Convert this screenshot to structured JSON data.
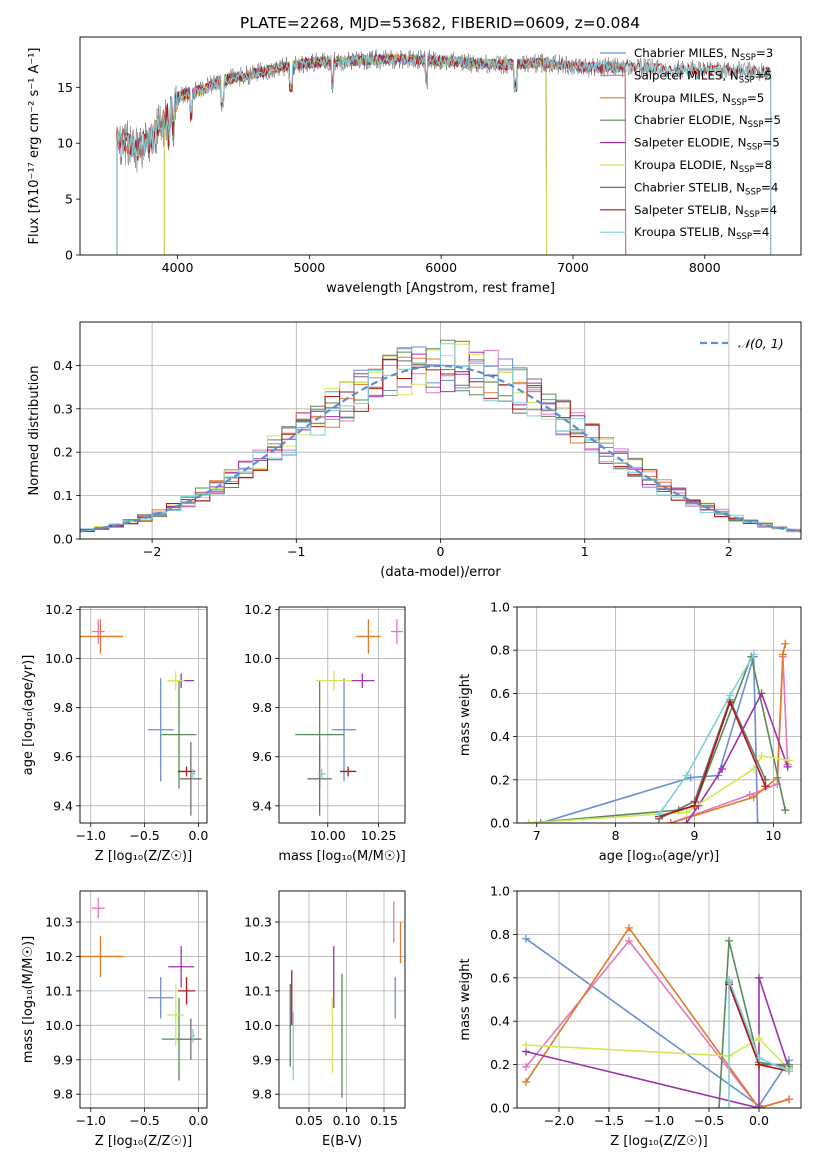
{
  "figure_title": "PLATE=2268, MJD=53682, FIBERID=0609, z=0.084",
  "colors": {
    "Chabrier MILES": "#6a8fd6",
    "Salpeter MILES": "#e377c2",
    "Kroupa MILES": "#e07b2a",
    "Chabrier ELODIE": "#5a8a5a",
    "Salpeter ELODIE": "#a030b0",
    "Kroupa ELODIE": "#d4e85a",
    "Chabrier STELIB": "#707070",
    "Salpeter STELIB": "#b01818",
    "Kroupa STELIB": "#7fd0d8"
  },
  "chart_data": [
    {
      "id": "spectrum",
      "type": "line",
      "title": "PLATE=2268, MJD=53682, FIBERID=0609, z=0.084",
      "xlabel": "wavelength [Angstrom, rest frame]",
      "ylabel": "Flux [fλ10⁻¹⁷ erg cm⁻² s⁻¹ A⁻¹]",
      "xlim": [
        3260,
        8730
      ],
      "ylim": [
        0,
        19.5
      ],
      "xticks": [
        4000,
        5000,
        6000,
        7000,
        8000
      ],
      "yticks": [
        0,
        5,
        10,
        15
      ],
      "legend_position": "top-right",
      "legend": [
        "Chabrier MILES, N_SSP=3",
        "Salpeter MILES, N_SSP=5",
        "Kroupa MILES, N_SSP=5",
        "Chabrier ELODIE, N_SSP=5",
        "Salpeter ELODIE, N_SSP=5",
        "Kroupa ELODIE, N_SSP=8",
        "Chabrier STELIB, N_SSP=4",
        "Salpeter STELIB, N_SSP=4",
        "Kroupa STELIB, N_SSP=4"
      ],
      "continuum": {
        "x": [
          3500,
          3600,
          3700,
          3800,
          3900,
          4000,
          4100,
          4200,
          4300,
          4400,
          4500,
          4700,
          5000,
          5300,
          5600,
          5900,
          6200,
          6500,
          6800,
          7100,
          7400,
          7800,
          8200,
          8500
        ],
        "y": [
          10.5,
          10,
          9.5,
          10.5,
          12,
          14.2,
          14.5,
          14.8,
          15.5,
          15.8,
          16,
          16.6,
          17.2,
          17.4,
          17.5,
          17.5,
          17.2,
          17,
          17.2,
          16.8,
          16.8,
          16.6,
          16.5,
          16.3
        ]
      },
      "model_ranges": {
        "Chabrier MILES": [
          3540,
          7400
        ],
        "Salpeter MILES": [
          3540,
          7400
        ],
        "Kroupa MILES": [
          3540,
          7400
        ],
        "Chabrier ELODIE": [
          3900,
          6800
        ],
        "Salpeter ELODIE": [
          3900,
          6800
        ],
        "Kroupa ELODIE": [
          3900,
          6800
        ],
        "Chabrier STELIB": [
          3540,
          8500
        ],
        "Salpeter STELIB": [
          3540,
          8500
        ],
        "Kroupa STELIB": [
          3540,
          8500
        ]
      }
    },
    {
      "id": "residuals",
      "type": "line",
      "xlabel": "(data-model)/error",
      "ylabel": "Normed distribution",
      "xlim": [
        -2.5,
        2.5
      ],
      "ylim": [
        0,
        0.5
      ],
      "xticks": [
        -2,
        -1,
        0,
        1,
        2
      ],
      "yticks": [
        0.0,
        0.1,
        0.2,
        0.3,
        0.4
      ],
      "grid": true,
      "legend_position": "top-right",
      "legend": [
        "𝒩(0, 1)"
      ],
      "normal_curve_color": "#5b8ed6",
      "bin_width": 0.1
    },
    {
      "id": "age-vs-Z",
      "type": "scatter",
      "xlabel": "Z [log₁₀(Z/Z☉)]",
      "ylabel": "age  [log₁₀(age/yr)]",
      "xlim": [
        -1.1,
        0.08
      ],
      "ylim": [
        9.33,
        10.21
      ],
      "xticks": [
        -1.0,
        -0.5,
        0.0
      ],
      "yticks": [
        9.4,
        9.6,
        9.8,
        10.0,
        10.2
      ],
      "grid": true,
      "points": [
        {
          "model": "Chabrier MILES",
          "x": -0.35,
          "y": 9.71,
          "xerr": 0.12,
          "yerr": 0.21
        },
        {
          "model": "Salpeter MILES",
          "x": -0.93,
          "y": 10.11,
          "xerr": 0.06,
          "yerr": 0.05
        },
        {
          "model": "Kroupa MILES",
          "x": -0.91,
          "y": 10.09,
          "xerr": 0.21,
          "yerr": 0.07
        },
        {
          "model": "Chabrier ELODIE",
          "x": -0.18,
          "y": 9.69,
          "xerr": 0.16,
          "yerr": 0.22
        },
        {
          "model": "Salpeter ELODIE",
          "x": -0.16,
          "y": 9.91,
          "xerr": 0.12,
          "yerr": 0.03
        },
        {
          "model": "Kroupa ELODIE",
          "x": -0.21,
          "y": 9.91,
          "xerr": 0.08,
          "yerr": 0.04
        },
        {
          "model": "Chabrier STELIB",
          "x": -0.07,
          "y": 9.51,
          "xerr": 0.1,
          "yerr": 0.15
        },
        {
          "model": "Salpeter STELIB",
          "x": -0.11,
          "y": 9.54,
          "xerr": 0.08,
          "yerr": 0.02
        },
        {
          "model": "Kroupa STELIB",
          "x": -0.05,
          "y": 9.53,
          "xerr": 0.02,
          "yerr": 0.02
        }
      ]
    },
    {
      "id": "age-vs-mass",
      "type": "scatter",
      "xlabel": "mass [log₁₀(M/M☉)]",
      "ylabel": "",
      "xlim": [
        9.76,
        10.38
      ],
      "ylim": [
        9.33,
        10.21
      ],
      "xticks": [
        10.0,
        10.25
      ],
      "yticks": [
        9.4,
        9.6,
        9.8,
        10.0,
        10.2
      ],
      "grid": true,
      "points": [
        {
          "model": "Chabrier MILES",
          "x": 10.08,
          "y": 9.71,
          "xerr": 0.06,
          "yerr": 0.21
        },
        {
          "model": "Salpeter MILES",
          "x": 10.34,
          "y": 10.11,
          "xerr": 0.03,
          "yerr": 0.05
        },
        {
          "model": "Kroupa MILES",
          "x": 10.2,
          "y": 10.09,
          "xerr": 0.06,
          "yerr": 0.07
        },
        {
          "model": "Chabrier ELODIE",
          "x": 9.96,
          "y": 9.69,
          "xerr": 0.12,
          "yerr": 0.22
        },
        {
          "model": "Salpeter ELODIE",
          "x": 10.17,
          "y": 9.91,
          "xerr": 0.06,
          "yerr": 0.03
        },
        {
          "model": "Kroupa ELODIE",
          "x": 10.03,
          "y": 9.91,
          "xerr": 0.09,
          "yerr": 0.04
        },
        {
          "model": "Chabrier STELIB",
          "x": 9.96,
          "y": 9.51,
          "xerr": 0.06,
          "yerr": 0.15
        },
        {
          "model": "Salpeter STELIB",
          "x": 10.1,
          "y": 9.54,
          "xerr": 0.04,
          "yerr": 0.02
        },
        {
          "model": "Kroupa STELIB",
          "x": 9.97,
          "y": 9.53,
          "xerr": 0.02,
          "yerr": 0.02
        }
      ]
    },
    {
      "id": "weight-vs-age",
      "type": "line",
      "xlabel": "age  [log₁₀(age/yr)]",
      "ylabel": "mass weight",
      "xlim": [
        6.75,
        10.35
      ],
      "ylim": [
        0,
        1
      ],
      "xticks": [
        7,
        8,
        9,
        10
      ],
      "yticks": [
        0.0,
        0.2,
        0.4,
        0.6,
        0.8,
        1.0
      ],
      "grid": true,
      "series": [
        {
          "model": "Chabrier MILES",
          "x": [
            7.05,
            8.95,
            9.3,
            9.75,
            9.8
          ],
          "y": [
            0.0,
            0.21,
            0.22,
            0.77,
            0.0
          ]
        },
        {
          "model": "Salpeter MILES",
          "x": [
            8.7,
            9.7,
            10.05,
            10.12,
            10.18
          ],
          "y": [
            0.0,
            0.13,
            0.18,
            0.77,
            0.27
          ]
        },
        {
          "model": "Kroupa MILES",
          "x": [
            8.7,
            9.75,
            10.05,
            10.12,
            10.15
          ],
          "y": [
            0.0,
            0.12,
            0.21,
            0.78,
            0.83
          ]
        },
        {
          "model": "Chabrier ELODIE",
          "x": [
            6.9,
            8.8,
            9.0,
            9.72,
            10.15
          ],
          "y": [
            0.0,
            0.06,
            0.08,
            0.77,
            0.06
          ]
        },
        {
          "model": "Salpeter ELODIE",
          "x": [
            8.9,
            9.05,
            9.35,
            9.85,
            10.18
          ],
          "y": [
            0.0,
            0.08,
            0.25,
            0.6,
            0.26
          ]
        },
        {
          "model": "Kroupa ELODIE",
          "x": [
            6.9,
            8.9,
            9.75,
            9.85,
            10.2
          ],
          "y": [
            0.0,
            0.05,
            0.25,
            0.31,
            0.29
          ]
        },
        {
          "model": "Chabrier STELIB",
          "x": [
            8.55,
            9.0,
            9.45,
            9.9
          ],
          "y": [
            0.02,
            0.1,
            0.57,
            0.2
          ]
        },
        {
          "model": "Salpeter STELIB",
          "x": [
            8.55,
            9.0,
            9.45,
            9.9
          ],
          "y": [
            0.03,
            0.08,
            0.56,
            0.17
          ]
        },
        {
          "model": "Kroupa STELIB",
          "x": [
            8.55,
            8.9,
            9.45,
            9.75
          ],
          "y": [
            0.04,
            0.22,
            0.59,
            0.78
          ]
        }
      ]
    },
    {
      "id": "mass-vs-Z",
      "type": "scatter",
      "xlabel": "Z [log₁₀(Z/Z☉)]",
      "ylabel": "mass [log₁₀(M/M☉)]",
      "xlim": [
        -1.1,
        0.08
      ],
      "ylim": [
        9.76,
        10.39
      ],
      "xticks": [
        -1.0,
        -0.5,
        0.0
      ],
      "yticks": [
        9.8,
        9.9,
        10.0,
        10.1,
        10.2,
        10.3
      ],
      "grid": true,
      "points": [
        {
          "model": "Chabrier MILES",
          "x": -0.35,
          "y": 10.08,
          "xerr": 0.12,
          "yerr": 0.06
        },
        {
          "model": "Salpeter MILES",
          "x": -0.93,
          "y": 10.34,
          "xerr": 0.06,
          "yerr": 0.03
        },
        {
          "model": "Kroupa MILES",
          "x": -0.91,
          "y": 10.2,
          "xerr": 0.21,
          "yerr": 0.06
        },
        {
          "model": "Chabrier ELODIE",
          "x": -0.18,
          "y": 9.96,
          "xerr": 0.16,
          "yerr": 0.12
        },
        {
          "model": "Salpeter ELODIE",
          "x": -0.16,
          "y": 10.17,
          "xerr": 0.12,
          "yerr": 0.06
        },
        {
          "model": "Kroupa ELODIE",
          "x": -0.21,
          "y": 10.03,
          "xerr": 0.08,
          "yerr": 0.09
        },
        {
          "model": "Chabrier STELIB",
          "x": -0.07,
          "y": 9.96,
          "xerr": 0.1,
          "yerr": 0.06
        },
        {
          "model": "Salpeter STELIB",
          "x": -0.11,
          "y": 10.1,
          "xerr": 0.08,
          "yerr": 0.04
        },
        {
          "model": "Kroupa STELIB",
          "x": -0.05,
          "y": 9.97,
          "xerr": 0.02,
          "yerr": 0.02
        }
      ]
    },
    {
      "id": "mass-vs-EBV",
      "type": "scatter",
      "xlabel": "E(B-V)",
      "ylabel": "",
      "xlim": [
        0.01,
        0.178
      ],
      "ylim": [
        9.76,
        10.39
      ],
      "xticks": [
        0.05,
        0.1,
        0.15
      ],
      "yticks": [
        9.8,
        9.9,
        10.0,
        10.1,
        10.2,
        10.3
      ],
      "grid": true,
      "points": [
        {
          "model": "Chabrier MILES",
          "x": 0.165,
          "y": 10.08,
          "xerr": 0,
          "yerr": 0.06
        },
        {
          "model": "Salpeter MILES",
          "x": 0.163,
          "y": 10.3,
          "xerr": 0,
          "yerr": 0.06
        },
        {
          "model": "Kroupa MILES",
          "x": 0.172,
          "y": 10.24,
          "xerr": 0,
          "yerr": 0.06
        },
        {
          "model": "Chabrier ELODIE",
          "x": 0.094,
          "y": 9.97,
          "xerr": 0,
          "yerr": 0.18
        },
        {
          "model": "Salpeter ELODIE",
          "x": 0.083,
          "y": 10.14,
          "xerr": 0,
          "yerr": 0.09
        },
        {
          "model": "Kroupa ELODIE",
          "x": 0.081,
          "y": 9.97,
          "xerr": 0,
          "yerr": 0.11
        },
        {
          "model": "Chabrier STELIB",
          "x": 0.025,
          "y": 10.0,
          "xerr": 0,
          "yerr": 0.12
        },
        {
          "model": "Salpeter STELIB",
          "x": 0.027,
          "y": 10.08,
          "xerr": 0,
          "yerr": 0.08
        },
        {
          "model": "Kroupa STELIB",
          "x": 0.029,
          "y": 9.94,
          "xerr": 0,
          "yerr": 0.1
        }
      ]
    },
    {
      "id": "weight-vs-Z",
      "type": "line",
      "xlabel": "Z [log₁₀(Z/Z☉)]",
      "ylabel": "mass weight",
      "xlim": [
        -2.42,
        0.42
      ],
      "ylim": [
        0,
        1
      ],
      "xticks": [
        -2.0,
        -1.5,
        -1.0,
        -0.5,
        0.0
      ],
      "yticks": [
        0.0,
        0.2,
        0.4,
        0.6,
        0.8,
        1.0
      ],
      "grid": true,
      "series": [
        {
          "model": "Chabrier MILES",
          "x": [
            -2.33,
            0.0,
            0.3
          ],
          "y": [
            0.78,
            0.01,
            0.22
          ]
        },
        {
          "model": "Salpeter MILES",
          "x": [
            -2.33,
            -1.3,
            0.0,
            0.3
          ],
          "y": [
            0.19,
            0.77,
            0.0,
            0.04
          ]
        },
        {
          "model": "Kroupa MILES",
          "x": [
            -2.33,
            -1.3,
            0.0,
            0.3
          ],
          "y": [
            0.12,
            0.83,
            0.0,
            0.04
          ]
        },
        {
          "model": "Chabrier ELODIE",
          "x": [
            -0.4,
            -0.3,
            0.0,
            0.3
          ],
          "y": [
            0.0,
            0.77,
            0.21,
            0.19
          ]
        },
        {
          "model": "Salpeter ELODIE",
          "x": [
            -2.33,
            0.0,
            0.0,
            0.3
          ],
          "y": [
            0.26,
            0.0,
            0.6,
            0.18
          ]
        },
        {
          "model": "Kroupa ELODIE",
          "x": [
            -2.33,
            -0.3,
            0.0,
            0.3
          ],
          "y": [
            0.29,
            0.24,
            0.32,
            0.18
          ]
        },
        {
          "model": "Chabrier STELIB",
          "x": [
            -0.3,
            0.0,
            0.3
          ],
          "y": [
            0.58,
            0.2,
            0.2
          ]
        },
        {
          "model": "Salpeter STELIB",
          "x": [
            -0.3,
            0.0,
            0.3
          ],
          "y": [
            0.57,
            0.2,
            0.17
          ]
        },
        {
          "model": "Kroupa STELIB",
          "x": [
            -0.3,
            -0.3,
            0.0,
            0.3
          ],
          "y": [
            0.0,
            0.59,
            0.23,
            0.17
          ]
        }
      ]
    }
  ]
}
